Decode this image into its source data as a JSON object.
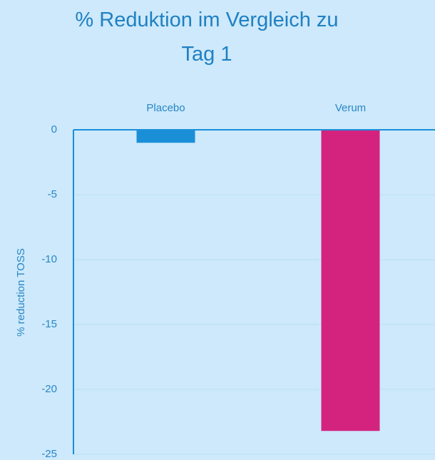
{
  "chart_data": {
    "type": "bar",
    "title": "% Reduktion im Vergleich zu Tag 1",
    "y_label": "% reduction TOSS",
    "categories": [
      "Placebo",
      "Verum"
    ],
    "values": [
      -1.0,
      -23.2
    ],
    "colors": [
      "#1a8fd8",
      "#d4237f"
    ],
    "ylim": [
      -25,
      0
    ],
    "yticks": [
      0,
      -5,
      -10,
      -15,
      -20,
      -25
    ],
    "grid": true
  }
}
